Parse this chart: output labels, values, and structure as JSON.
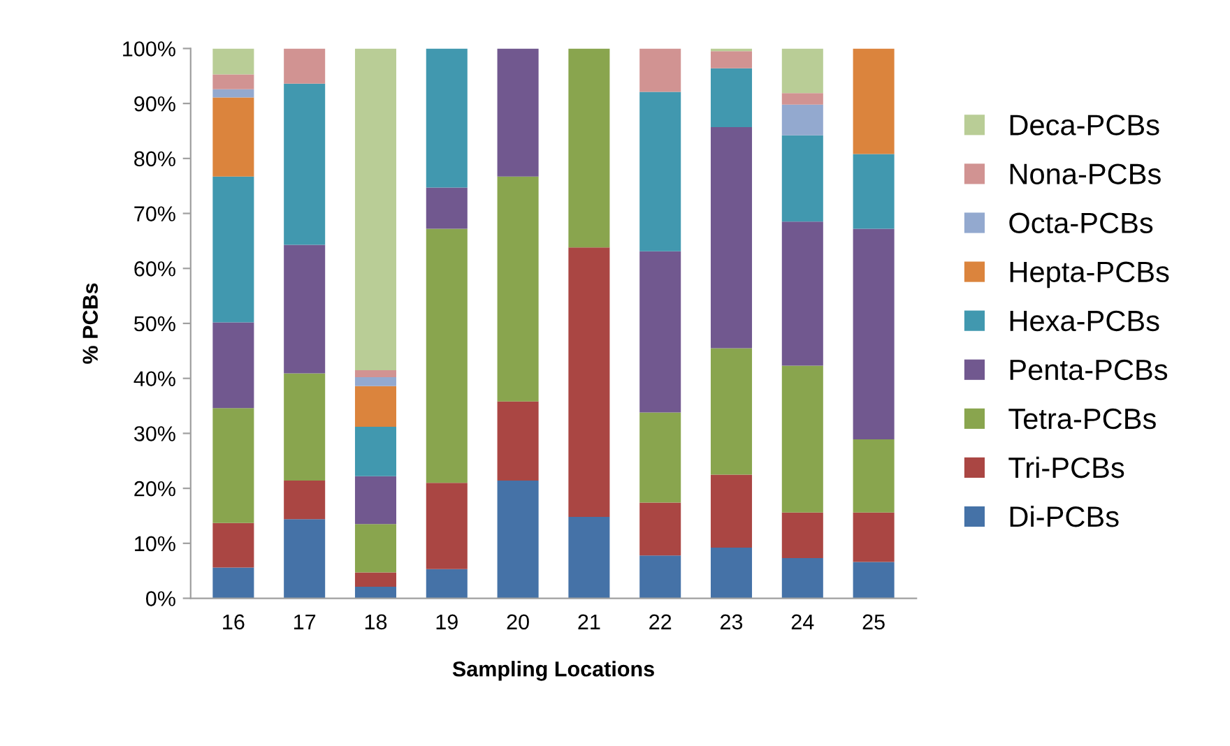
{
  "chart_data": {
    "type": "bar",
    "stacked": true,
    "xlabel": "Sampling Locations",
    "ylabel": "% PCBs",
    "categories": [
      "16",
      "17",
      "18",
      "19",
      "20",
      "21",
      "22",
      "23",
      "24",
      "25"
    ],
    "series": [
      {
        "name": "Di-PCBs",
        "color": "#4572a7",
        "values": [
          5.6,
          14.4,
          2.1,
          5.3,
          21.4,
          14.8,
          7.8,
          9.2,
          7.3,
          6.6
        ]
      },
      {
        "name": "Tri-PCBs",
        "color": "#aa4643",
        "values": [
          8.1,
          7.0,
          2.6,
          15.7,
          14.4,
          49.0,
          9.6,
          13.3,
          8.3,
          9.0
        ]
      },
      {
        "name": "Tetra-PCBs",
        "color": "#89a54e",
        "values": [
          20.9,
          19.5,
          8.8,
          46.2,
          40.9,
          36.2,
          16.4,
          23.0,
          26.7,
          13.3
        ]
      },
      {
        "name": "Penta-PCBs",
        "color": "#71588f",
        "values": [
          15.6,
          23.4,
          8.7,
          7.5,
          23.3,
          0,
          29.3,
          40.2,
          26.2,
          38.3
        ]
      },
      {
        "name": "Hexa-PCBs",
        "color": "#4198af",
        "values": [
          26.5,
          29.3,
          9.0,
          25.3,
          0,
          0,
          29.0,
          10.7,
          15.7,
          13.6
        ]
      },
      {
        "name": "Hepta-PCBs",
        "color": "#db843d",
        "values": [
          14.4,
          0,
          7.4,
          0,
          0,
          0,
          0,
          0,
          0,
          19.2
        ]
      },
      {
        "name": "Octa-PCBs",
        "color": "#93a9cf",
        "values": [
          1.5,
          0,
          1.6,
          0,
          0,
          0,
          0,
          0,
          5.6,
          0
        ]
      },
      {
        "name": "Nona-PCBs",
        "color": "#d19392",
        "values": [
          2.7,
          6.4,
          1.3,
          0,
          0,
          0,
          7.9,
          3.1,
          2.1,
          0
        ]
      },
      {
        "name": "Deca-PCBs",
        "color": "#b9cd96",
        "values": [
          4.7,
          0,
          58.5,
          0,
          0,
          0,
          0,
          0.5,
          8.1,
          0
        ]
      }
    ],
    "ylim": [
      0,
      100
    ],
    "yticks": [
      {
        "value": 0,
        "label": "0%"
      },
      {
        "value": 10,
        "label": "10%"
      },
      {
        "value": 20,
        "label": "20%"
      },
      {
        "value": 30,
        "label": "30%"
      },
      {
        "value": 40,
        "label": "40%"
      },
      {
        "value": 50,
        "label": "50%"
      },
      {
        "value": 60,
        "label": "60%"
      },
      {
        "value": 70,
        "label": "70%"
      },
      {
        "value": 80,
        "label": "80%"
      },
      {
        "value": 90,
        "label": "90%"
      },
      {
        "value": 100,
        "label": "100%"
      }
    ],
    "grid": false,
    "legend": "right"
  }
}
